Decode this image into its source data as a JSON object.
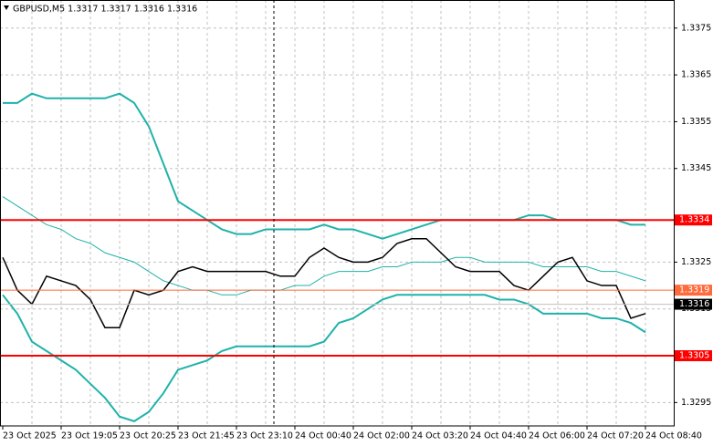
{
  "chart_data": {
    "type": "line",
    "title": "GBPUSD,M5  1.3317 1.3317 1.3316 1.3316",
    "categories": [
      "23 Oct 2025",
      null,
      null,
      null,
      "23 Oct 19:05",
      null,
      null,
      null,
      "23 Oct 20:25",
      null,
      null,
      null,
      "23 Oct 21:45",
      null,
      null,
      null,
      "23 Oct 23:10",
      null,
      null,
      null,
      "24 Oct 00:40",
      null,
      null,
      null,
      "24 Oct 02:00",
      null,
      null,
      null,
      "24 Oct 03:20",
      null,
      null,
      null,
      "24 Oct 04:40",
      null,
      null,
      null,
      "24 Oct 06:00",
      null,
      null,
      null,
      "24 Oct 07:20",
      null,
      null,
      null,
      "24 Oct 08:40"
    ],
    "series": [
      {
        "color": "#20b2aa",
        "line_width": 2,
        "values": [
          1.3359,
          1.3359,
          1.3361,
          1.336,
          1.336,
          1.336,
          1.336,
          1.336,
          1.3361,
          1.3359,
          1.3354,
          1.3346,
          1.3338,
          1.3336,
          1.3334,
          1.3332,
          1.3331,
          1.3331,
          1.3332,
          1.3332,
          1.3332,
          1.3332,
          1.3333,
          1.3332,
          1.3332,
          1.3331,
          1.333,
          1.3331,
          1.3332,
          1.3333,
          1.3334,
          1.3334,
          1.3334,
          1.3334,
          1.3334,
          1.3334,
          1.3335,
          1.3335,
          1.3334,
          1.3334,
          1.3334,
          1.3334,
          1.3334,
          1.3333,
          1.3333
        ]
      },
      {
        "color": "#20b2aa",
        "line_width": 1,
        "values": [
          1.3339,
          1.3337,
          1.3335,
          1.3333,
          1.3332,
          1.333,
          1.3329,
          1.3327,
          1.3326,
          1.3325,
          1.3323,
          1.3321,
          1.332,
          1.3319,
          1.3319,
          1.3318,
          1.3318,
          1.3319,
          1.3319,
          1.3319,
          1.332,
          1.332,
          1.3322,
          1.3323,
          1.3323,
          1.3323,
          1.3324,
          1.3324,
          1.3325,
          1.3325,
          1.3325,
          1.3326,
          1.3326,
          1.3325,
          1.3325,
          1.3325,
          1.3325,
          1.3324,
          1.3324,
          1.3324,
          1.3324,
          1.3323,
          1.3323,
          1.3322,
          1.3321
        ]
      },
      {
        "color": "#20b2aa",
        "line_width": 2,
        "values": [
          1.3318,
          1.3314,
          1.3308,
          1.3306,
          1.3304,
          1.3302,
          1.3299,
          1.3296,
          1.3292,
          1.3291,
          1.3293,
          1.3297,
          1.3302,
          1.3303,
          1.3304,
          1.3306,
          1.3307,
          1.3307,
          1.3307,
          1.3307,
          1.3307,
          1.3307,
          1.3308,
          1.3312,
          1.3313,
          1.3315,
          1.3317,
          1.3318,
          1.3318,
          1.3318,
          1.3318,
          1.3318,
          1.3318,
          1.3318,
          1.3317,
          1.3317,
          1.3316,
          1.3314,
          1.3314,
          1.3314,
          1.3314,
          1.3313,
          1.3313,
          1.3312,
          1.331
        ]
      },
      {
        "color": "#000000",
        "line_width": 1.5,
        "values": [
          1.3326,
          1.3319,
          1.3316,
          1.3322,
          1.3321,
          1.332,
          1.3317,
          1.3311,
          1.3311,
          1.3319,
          1.3318,
          1.3319,
          1.3323,
          1.3324,
          1.3323,
          1.3323,
          1.3323,
          1.3323,
          1.3323,
          1.3322,
          1.3322,
          1.3326,
          1.3328,
          1.3326,
          1.3325,
          1.3325,
          1.3326,
          1.3329,
          1.333,
          1.333,
          1.3327,
          1.3324,
          1.3323,
          1.3323,
          1.3323,
          1.332,
          1.3319,
          1.3322,
          1.3325,
          1.3326,
          1.3321,
          1.332,
          1.332,
          1.3313,
          1.3314
        ]
      }
    ],
    "levels": [
      {
        "value": 1.3334,
        "color": "#ff0000"
      },
      {
        "value": 1.3319,
        "color": "#ff6a3d"
      },
      {
        "value": 1.3305,
        "color": "#ff0000"
      }
    ],
    "last_price": 1.3316,
    "ylim": [
      1.329,
      1.3381
    ],
    "yticks": [
      1.3295,
      1.3305,
      1.3315,
      1.3325,
      1.3345,
      1.3355,
      1.3365,
      1.3375
    ],
    "grid": true
  }
}
